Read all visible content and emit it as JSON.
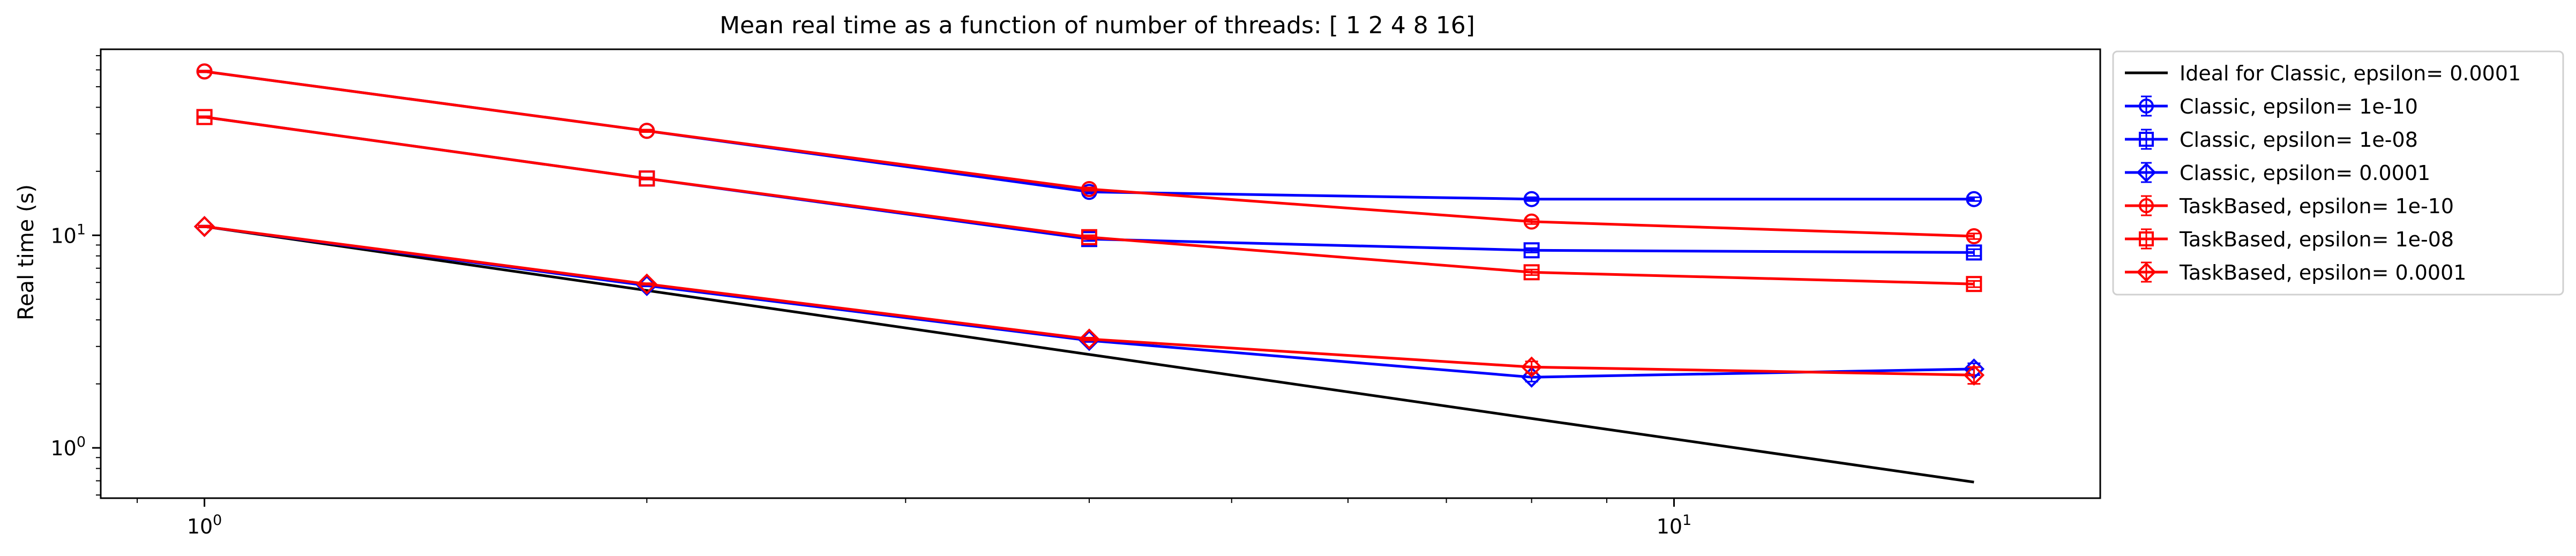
{
  "chart_data": {
    "type": "line",
    "title": "Mean real time as a function of number of threads: [ 1  2  4  8 16]",
    "xlabel": "",
    "ylabel": "Real time (s)",
    "x_scale": "log",
    "y_scale": "log",
    "xlim": [
      0.85,
      19.5
    ],
    "ylim": [
      0.58,
      75
    ],
    "x_ticks": [
      {
        "value": 1,
        "base": "10",
        "exp": "0"
      },
      {
        "value": 10,
        "base": "10",
        "exp": "1"
      }
    ],
    "y_ticks": [
      {
        "value": 1,
        "base": "10",
        "exp": "0"
      },
      {
        "value": 10,
        "base": "10",
        "exp": "1"
      }
    ],
    "grid": false,
    "legend_position": "outside-right",
    "x": [
      1,
      2,
      4,
      8,
      16
    ],
    "series": [
      {
        "name": "Ideal for Classic, epsilon= 0.0001",
        "color": "#000000",
        "marker": "none",
        "errorbars": false,
        "values": [
          11.0,
          5.5,
          2.75,
          1.375,
          0.69
        ]
      },
      {
        "name": "Classic, epsilon= 1e-10",
        "color": "#0000ff",
        "marker": "circle",
        "errorbars": true,
        "values": [
          59.0,
          31.0,
          16.0,
          14.8,
          14.8
        ],
        "errors": [
          0.5,
          0.4,
          0.3,
          0.3,
          0.3
        ]
      },
      {
        "name": "Classic, epsilon= 1e-08",
        "color": "#0000ff",
        "marker": "square",
        "errorbars": true,
        "values": [
          36.0,
          18.5,
          9.6,
          8.5,
          8.3
        ],
        "errors": [
          0.3,
          0.2,
          0.2,
          0.2,
          0.3
        ]
      },
      {
        "name": "Classic, epsilon= 0.0001",
        "color": "#0000ff",
        "marker": "diamond",
        "errorbars": true,
        "values": [
          11.0,
          5.8,
          3.2,
          2.15,
          2.35
        ],
        "errors": [
          0.1,
          0.05,
          0.05,
          0.1,
          0.15
        ]
      },
      {
        "name": "TaskBased, epsilon= 1e-10",
        "color": "#ff0000",
        "marker": "circle",
        "errorbars": true,
        "values": [
          59.0,
          31.0,
          16.5,
          11.6,
          9.9
        ],
        "errors": [
          0.5,
          0.4,
          0.3,
          0.3,
          0.3
        ]
      },
      {
        "name": "TaskBased, epsilon= 1e-08",
        "color": "#ff0000",
        "marker": "square",
        "errorbars": true,
        "values": [
          36.0,
          18.5,
          9.8,
          6.7,
          5.9
        ],
        "errors": [
          0.3,
          0.2,
          0.2,
          0.2,
          0.2
        ]
      },
      {
        "name": "TaskBased, epsilon= 0.0001",
        "color": "#ff0000",
        "marker": "diamond",
        "errorbars": true,
        "values": [
          11.0,
          5.9,
          3.25,
          2.4,
          2.2
        ],
        "errors": [
          0.1,
          0.05,
          0.05,
          0.15,
          0.2
        ]
      }
    ]
  }
}
